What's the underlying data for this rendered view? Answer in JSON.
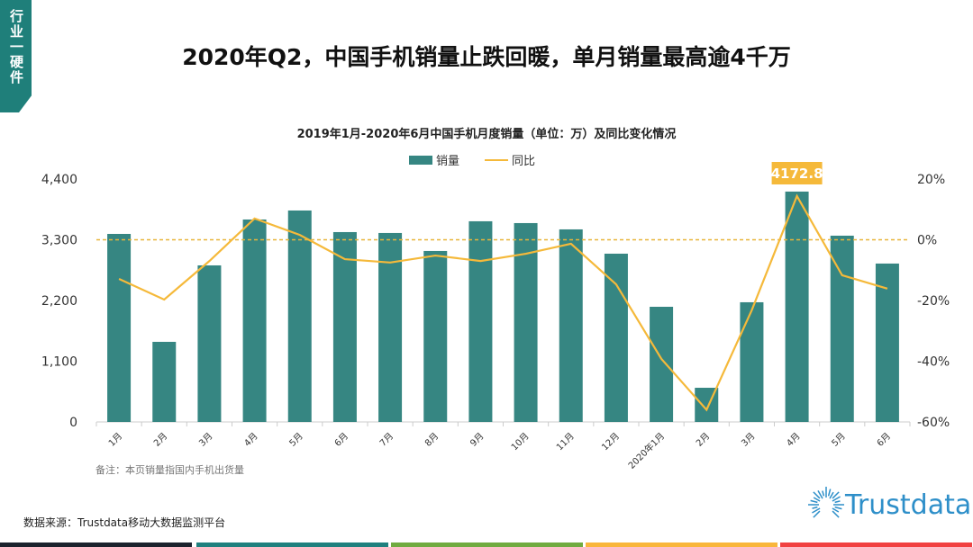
{
  "tag": "行业一硬件",
  "title": "2020年Q2，中国手机销量止跌回暖，单月销量最高逾4千万",
  "note": "备注：本页销量指国内手机出货量",
  "source": "数据来源：Trustdata移动大数据监测平台",
  "logo": "Trustdata",
  "colors": {
    "bar": "#368682",
    "line": "#f5b93a",
    "strip": [
      "#1b222c",
      "#1f807e",
      "#70ab40",
      "#f9b63c",
      "#f14141"
    ]
  },
  "chart_data": {
    "type": "bar+line",
    "title": "2019年1月-2020年6月中国手机月度销量（单位：万）及同比变化情况",
    "categories": [
      "1月",
      "2月",
      "3月",
      "4月",
      "5月",
      "6月",
      "7月",
      "8月",
      "9月",
      "10月",
      "11月",
      "12月",
      "2020年1月",
      "2月",
      "3月",
      "4月",
      "5月",
      "6月"
    ],
    "series": [
      {
        "name": "销量",
        "type": "bar",
        "axis": "left",
        "values": [
          3406,
          1451,
          2836,
          3667,
          3830,
          3439,
          3423,
          3097,
          3635,
          3602,
          3488,
          3048,
          2086,
          619,
          2168,
          4172.8,
          3374,
          2869
        ]
      },
      {
        "name": "同比",
        "type": "line",
        "axis": "right",
        "values": [
          -12.9,
          -19.7,
          -7.0,
          7.0,
          1.6,
          -6.4,
          -7.5,
          -5.2,
          -7.0,
          -4.6,
          -1.3,
          -14.7,
          -39.2,
          -56.0,
          -23.2,
          14.4,
          -11.7,
          -16.1
        ]
      }
    ],
    "left_axis": {
      "range": [
        0,
        4400
      ],
      "ticks": [
        "0",
        "1,100",
        "2,200",
        "3,300",
        "4,400"
      ]
    },
    "right_axis": {
      "range": [
        -60,
        20
      ],
      "ticks": [
        "-60%",
        "-40%",
        "-20%",
        "0%",
        "20%"
      ]
    },
    "annotation": {
      "label": "4172.8",
      "category_index": 15
    },
    "reference_line": {
      "value": 0,
      "axis": "right",
      "style": "dashed"
    },
    "legend": "top"
  }
}
